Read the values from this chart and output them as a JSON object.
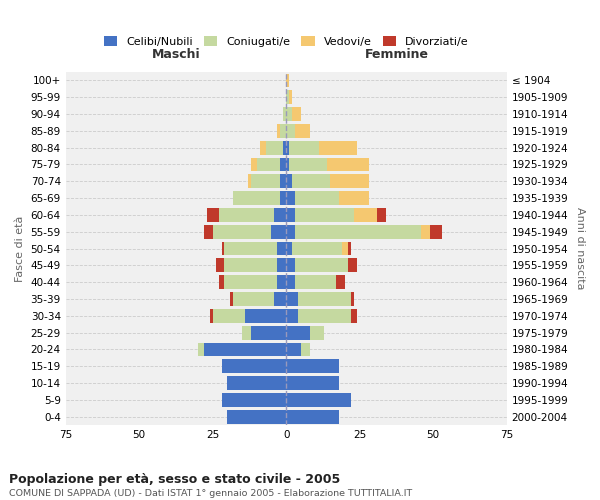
{
  "age_groups": [
    "0-4",
    "5-9",
    "10-14",
    "15-19",
    "20-24",
    "25-29",
    "30-34",
    "35-39",
    "40-44",
    "45-49",
    "50-54",
    "55-59",
    "60-64",
    "65-69",
    "70-74",
    "75-79",
    "80-84",
    "85-89",
    "90-94",
    "95-99",
    "100+"
  ],
  "birth_years": [
    "2000-2004",
    "1995-1999",
    "1990-1994",
    "1985-1989",
    "1980-1984",
    "1975-1979",
    "1970-1974",
    "1965-1969",
    "1960-1964",
    "1955-1959",
    "1950-1954",
    "1945-1949",
    "1940-1944",
    "1935-1939",
    "1930-1934",
    "1925-1929",
    "1920-1924",
    "1915-1919",
    "1910-1914",
    "1905-1909",
    "≤ 1904"
  ],
  "male_celibe": [
    20,
    22,
    20,
    22,
    28,
    12,
    14,
    4,
    3,
    3,
    3,
    5,
    4,
    2,
    2,
    2,
    1,
    0,
    0,
    0,
    0
  ],
  "male_coniugato": [
    0,
    0,
    0,
    0,
    2,
    3,
    11,
    14,
    18,
    18,
    18,
    20,
    19,
    16,
    10,
    8,
    6,
    2,
    1,
    0,
    0
  ],
  "male_vedovo": [
    0,
    0,
    0,
    0,
    0,
    0,
    0,
    0,
    0,
    0,
    0,
    0,
    0,
    0,
    1,
    2,
    2,
    1,
    0,
    0,
    0
  ],
  "male_divorziato": [
    0,
    0,
    0,
    0,
    0,
    0,
    1,
    1,
    2,
    3,
    1,
    3,
    4,
    0,
    0,
    0,
    0,
    0,
    0,
    0,
    0
  ],
  "female_nubile": [
    18,
    22,
    18,
    18,
    5,
    8,
    4,
    4,
    3,
    3,
    2,
    3,
    3,
    3,
    2,
    1,
    1,
    0,
    0,
    0,
    0
  ],
  "female_coniugata": [
    0,
    0,
    0,
    0,
    3,
    5,
    18,
    18,
    14,
    18,
    17,
    43,
    20,
    15,
    13,
    13,
    10,
    3,
    2,
    1,
    0
  ],
  "female_vedova": [
    0,
    0,
    0,
    0,
    0,
    0,
    0,
    0,
    0,
    0,
    2,
    3,
    8,
    10,
    13,
    14,
    13,
    5,
    3,
    1,
    1
  ],
  "female_divorziata": [
    0,
    0,
    0,
    0,
    0,
    0,
    2,
    1,
    3,
    3,
    1,
    4,
    3,
    0,
    0,
    0,
    0,
    0,
    0,
    0,
    0
  ],
  "colors": {
    "celibe": "#4472c4",
    "coniugato": "#c5d9a0",
    "vedovo": "#f5c870",
    "divorziato": "#c0392b"
  },
  "xlim": 75,
  "title": "Popolazione per età, sesso e stato civile - 2005",
  "subtitle": "COMUNE DI SAPPADA (UD) - Dati ISTAT 1° gennaio 2005 - Elaborazione TUTTITALIA.IT",
  "ylabel_left": "Fasce di età",
  "ylabel_right": "Anni di nascita",
  "xlabel_left": "Maschi",
  "xlabel_right": "Femmine",
  "bg_color": "#ffffff",
  "plot_bg": "#f0f0f0",
  "grid_color": "#cccccc"
}
